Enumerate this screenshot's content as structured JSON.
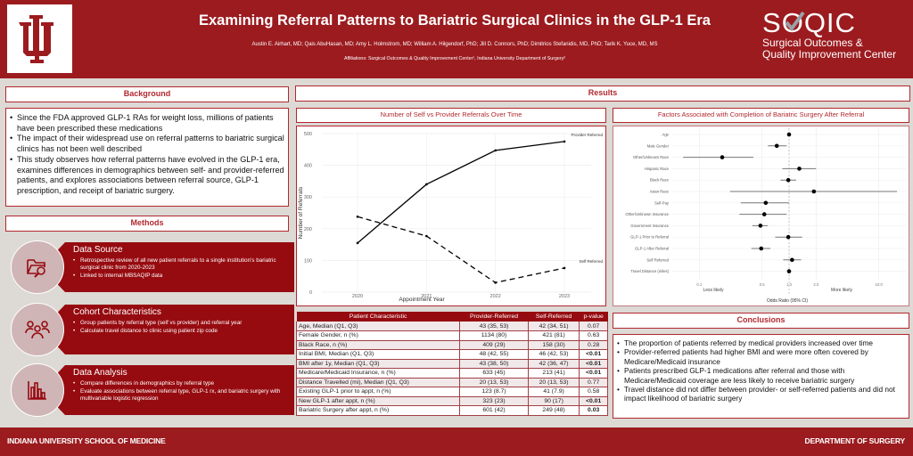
{
  "header": {
    "title": "Examining Referral Patterns to Bariatric Surgical Clinics in the GLP-1 Era",
    "authors": "Austin E. Airhart, MD; Qais AbuHasan, MD; Amy L. Holmstrom, MD; William A. Hilgendorf, PhD; Jill D. Connors, PhD; Dimitrios Stefanidis, MD, PhD; Tarik K. Yuce, MD, MS",
    "affiliations": "Affiliations: Surgical Outcomes & Quality Improvement Center¹, Indiana University Department of Surgery²",
    "left_logo": "iu-trident-logo",
    "right_logo": {
      "name": "SOQIC",
      "line1": "Surgical Outcomes &",
      "line2": "Quality Improvement Center"
    }
  },
  "colors": {
    "brand_red": "#9b1b1f",
    "dark_red": "#960b10",
    "accent": "#b2282e",
    "background": "#ddd9d5"
  },
  "background": {
    "heading": "Background",
    "bullets": [
      "Since the FDA approved GLP-1 RAs for weight loss, millions of patients have been prescribed these medications",
      "The impact of their widespread use on referral patterns to bariatric surgical clinics has not been well described",
      "This study observes how referral patterns have evolved in the GLP-1 era, examines differences in demographics between self- and provider-referred patients, and explores associations between referral source, GLP-1 prescription, and receipt of bariatric surgery."
    ]
  },
  "methods": {
    "heading": "Methods",
    "items": [
      {
        "icon": "folder-search-icon",
        "title": "Data Source",
        "bullets": [
          "Retrospective review of all new patient referrals to a single institution's bariatric surgical clinic from 2020-2023",
          "Linked to internal MBSAQIP data"
        ]
      },
      {
        "icon": "people-group-icon",
        "title": "Cohort Characteristics",
        "bullets": [
          "Group patients by referral type (self vs provider) and referral year",
          "Calculate travel distance to clinic using patient zip code"
        ]
      },
      {
        "icon": "bar-chart-icon",
        "title": "Data Analysis",
        "bullets": [
          "Compare differences in demographics by referral type",
          "Evaluate associations between referral type, GLP-1 rx, and bariatric surgery with multivariable logistic regression"
        ]
      }
    ]
  },
  "results": {
    "heading": "Results",
    "table": {
      "headers": [
        "Patient Characteristic",
        "Provider-Referred",
        "Self-Referred",
        "p-value"
      ],
      "rows": [
        {
          "c": "Age, Median (Q1, Q3)",
          "p": "43 (35, 53)",
          "s": "42 (34, 51)",
          "pv": "0.07",
          "bold": false
        },
        {
          "c": "Female Gender, n (%)",
          "p": "1134 (80)",
          "s": "421 (81)",
          "pv": "0.63",
          "bold": false
        },
        {
          "c": "Black Race, n (%)",
          "p": "409 (29)",
          "s": "158 (30)",
          "pv": "0.28",
          "bold": false
        },
        {
          "c": "Initial BMI, Median (Q1, Q3)",
          "p": "48 (42, 55)",
          "s": "46 (42, 53)",
          "pv": "<0.01",
          "bold": true
        },
        {
          "c": "BMI after 1y, Median (Q1, Q3)",
          "p": "43 (38, 50)",
          "s": "42 (36, 47)",
          "pv": "<0.01",
          "bold": true
        },
        {
          "c": "Medicare/Medicaid Insurance, n (%)",
          "p": "633 (45)",
          "s": "213 (41)",
          "pv": "<0.01",
          "bold": true
        },
        {
          "c": "Distance Travelled (mi), Median (Q1, Q3)",
          "p": "20 (13, 53)",
          "s": "20 (13, 53)",
          "pv": "0.77",
          "bold": false
        },
        {
          "c": "Existing GLP-1 prior to appt, n (%)",
          "p": "123 (8.7)",
          "s": "41 (7.9)",
          "pv": "0.58",
          "bold": false
        },
        {
          "c": "New GLP-1 after appt, n (%)",
          "p": "323 (23)",
          "s": "90 (17)",
          "pv": "<0.01",
          "bold": true
        },
        {
          "c": "Bariatric Surgery after appt, n (%)",
          "p": "601 (42)",
          "s": "249 (48)",
          "pv": "0.03",
          "bold": true
        }
      ]
    }
  },
  "chart_data": [
    {
      "type": "line",
      "title": "Number of Self vs Provider Referrals Over Time",
      "xlabel": "Appointment Year",
      "ylabel": "Number of Referrals",
      "x": [
        "2020",
        "2021",
        "2022",
        "2023"
      ],
      "ylim": [
        0,
        500
      ],
      "yticks": [
        0,
        100,
        200,
        300,
        400,
        500
      ],
      "grid": true,
      "series": [
        {
          "name": "Provider Referred",
          "style": "solid",
          "values": [
            155,
            340,
            447,
            475
          ]
        },
        {
          "name": "Self Referred",
          "style": "dashed",
          "values": [
            238,
            177,
            30,
            76
          ]
        }
      ]
    },
    {
      "type": "scatter",
      "subtype": "forest",
      "title": "Factors Associated with Completion of Bariatric Surgery After Referral",
      "xlabel": "Odds Ratio (95% CI)",
      "xscale": "log",
      "xlim": [
        0.05,
        20
      ],
      "xticks": [
        "0.1",
        "0.5",
        "1.0",
        "2.0",
        "10.0"
      ],
      "reference_line": 1.0,
      "annotations": [
        "Less likely",
        "More likely"
      ],
      "grid": true,
      "rows": [
        {
          "label": "Age",
          "or": 1.0,
          "lo": 0.99,
          "hi": 1.01
        },
        {
          "label": "Male Gender",
          "or": 0.73,
          "lo": 0.58,
          "hi": 0.94
        },
        {
          "label": "Other/Unknown Race",
          "or": 0.18,
          "lo": 0.066,
          "hi": 0.4
        },
        {
          "label": "Hispanic Race",
          "or": 1.3,
          "lo": 0.84,
          "hi": 2.0
        },
        {
          "label": "Black Race",
          "or": 0.98,
          "lo": 0.8,
          "hi": 1.2
        },
        {
          "label": "Asian Race",
          "or": 1.89,
          "lo": 0.22,
          "hi": 16.3
        },
        {
          "label": "Self-Pay",
          "or": 0.55,
          "lo": 0.29,
          "hi": 1.0
        },
        {
          "label": "Other/Unknown Insurance",
          "or": 0.53,
          "lo": 0.28,
          "hi": 0.94
        },
        {
          "label": "Government Insurance",
          "or": 0.48,
          "lo": 0.39,
          "hi": 0.58
        },
        {
          "label": "GLP-1 Prior to Referral",
          "or": 0.98,
          "lo": 0.7,
          "hi": 1.4
        },
        {
          "label": "GLP-1 After Referral",
          "or": 0.49,
          "lo": 0.38,
          "hi": 0.62
        },
        {
          "label": "Self Referred",
          "or": 1.08,
          "lo": 0.86,
          "hi": 1.36
        },
        {
          "label": "Travel Distance (miles)",
          "or": 1.0,
          "lo": 0.99,
          "hi": 1.01
        }
      ]
    }
  ],
  "conclusions": {
    "heading": "Conclusions",
    "bullets": [
      "The proportion of patients referred by medical providers increased over time",
      "Provider-referred patients had higher BMI and were more often covered by Medicare/Medicaid insurance",
      "Patients prescribed GLP-1 medications after referral and those with Medicare/Medicaid coverage are less likely to receive bariatric surgery",
      "Travel distance did not differ between provider- or self-referred patients and did not impact likelihood of bariatric surgery"
    ]
  },
  "footer": {
    "left": "INDIANA UNIVERSITY SCHOOL OF MEDICINE",
    "right": "DEPARTMENT OF SURGERY"
  }
}
